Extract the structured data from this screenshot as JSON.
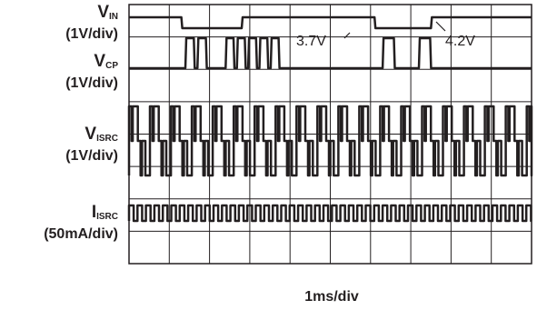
{
  "chart_data": {
    "type": "line",
    "title": "",
    "xlabel": "1ms/div",
    "grid": true,
    "divisions": {
      "x": 10,
      "y": 8
    },
    "trace_color": "#231f20",
    "grid_color": "#231f20",
    "channels": [
      {
        "name": "V",
        "subscript": "IN",
        "scale": "(1V/div)"
      },
      {
        "name": "V",
        "subscript": "CP",
        "scale": "(1V/div)"
      },
      {
        "name": "V",
        "subscript": "ISRC",
        "scale": "(1V/div)"
      },
      {
        "name": "I",
        "subscript": "ISRC",
        "scale": "(50mA/div)"
      }
    ],
    "annotations": [
      {
        "text": "3.7V",
        "target": "VIN low level"
      },
      {
        "text": "4.2V",
        "target": "VIN high level"
      }
    ],
    "series": [
      {
        "name": "VIN",
        "unit": "ms",
        "levels": {
          "high": 4.2,
          "low": 3.7
        },
        "low_intervals_ms": [
          [
            1.3,
            2.8
          ],
          [
            6.1,
            7.5
          ]
        ]
      },
      {
        "name": "VCP",
        "unit": "ms",
        "bursts_ms": [
          [
            1.4,
            2.0
          ],
          [
            2.4,
            3.8
          ],
          [
            6.3,
            6.7
          ],
          [
            7.2,
            7.6
          ]
        ]
      },
      {
        "name": "VISRC",
        "unit": "ms",
        "pulse_period_ms": 0.52
      },
      {
        "name": "IISRC",
        "unit": "ms",
        "pulse_period_ms": 0.21
      }
    ]
  }
}
